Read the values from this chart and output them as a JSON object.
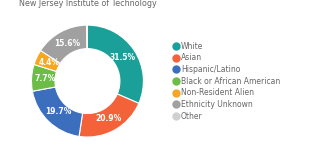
{
  "labels": [
    "White",
    "Asian",
    "Hispanic/Latino",
    "Black or African American",
    "Non-Resident Alien",
    "Ethnicity Unknown",
    "Other"
  ],
  "values": [
    31.5,
    20.9,
    19.7,
    7.7,
    4.4,
    15.6,
    0.2
  ],
  "colors": [
    "#1AA098",
    "#F4623A",
    "#3B6FBE",
    "#6BBD45",
    "#F5A623",
    "#A0A0A0",
    "#D0D0D0"
  ],
  "pct_labels": [
    "31.5%",
    "20.9%",
    "19.7%",
    "7.7%",
    "4.4%",
    "15.6%",
    ""
  ],
  "title_fontsize": 5.8,
  "legend_fontsize": 5.5,
  "pct_fontsize": 5.5,
  "title_color": "#666666",
  "bg_color": "#FFFFFF"
}
